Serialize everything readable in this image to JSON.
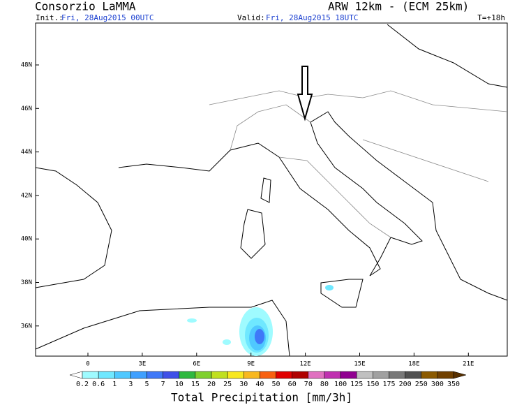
{
  "header": {
    "title": "Consorzio LaMMA",
    "model": "ARW 12km - (ECM 25km)",
    "init_label": "Init.:",
    "init": "Fri, 28Aug2015 00UTC",
    "valid_label": "Valid:",
    "valid": "Fri, 28Aug2015 18UTC",
    "lead": "T=+18h"
  },
  "map": {
    "lat_labels": [
      "48N",
      "46N",
      "44N",
      "42N",
      "40N",
      "38N",
      "36N"
    ],
    "lon_labels": [
      "0",
      "3E",
      "6E",
      "9E",
      "12E",
      "15E",
      "18E",
      "21E"
    ]
  },
  "colorbar": {
    "labels": [
      0.2,
      0.6,
      1,
      3,
      5,
      7,
      10,
      15,
      20,
      25,
      30,
      40,
      50,
      60,
      70,
      80,
      100,
      125,
      150,
      175,
      200,
      250,
      300,
      350
    ],
    "colors": [
      "#ffffff",
      "#9ffbff",
      "#6fe8ff",
      "#4fc8ff",
      "#3fa0ff",
      "#3f78f8",
      "#3f50e8",
      "#2fb83f",
      "#7fd02f",
      "#c0e020",
      "#f8e820",
      "#f8b820",
      "#f86010",
      "#e00000",
      "#b00000",
      "#e070c0",
      "#c030b0",
      "#900090",
      "#c0c0c0",
      "#a0a0a0",
      "#787878",
      "#505050",
      "#8b5a00",
      "#704000",
      "#583000"
    ],
    "title": "Total Precipitation [mm/3h]"
  }
}
